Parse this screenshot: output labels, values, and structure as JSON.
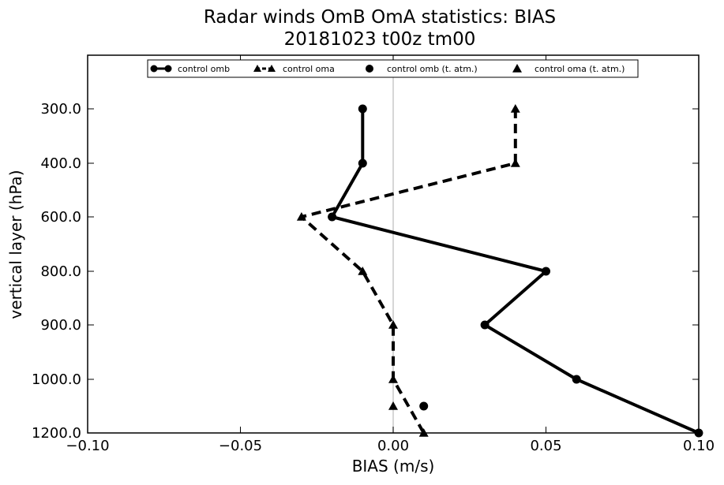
{
  "chart_data": {
    "type": "line",
    "title": "Radar winds OmB OmA statistics: BIAS",
    "subtitle": "20181023 t00z tm00",
    "xlabel": "BIAS (m/s)",
    "ylabel": "vertical layer (hPa)",
    "xlim": [
      -0.1,
      0.1
    ],
    "xticks": [
      "−0.10",
      "−0.05",
      "0.00",
      "0.05",
      "0.10"
    ],
    "xtick_values": [
      -0.1,
      -0.05,
      0.0,
      0.05,
      0.1
    ],
    "y_categories": [
      "300.0",
      "400.0",
      "600.0",
      "800.0",
      "900.0",
      "1000.0",
      "1200.0"
    ],
    "y_extra_position": "1100.0",
    "grid": false,
    "zero_line": true,
    "legend_position": "top-center",
    "series": [
      {
        "name": "control omb",
        "style": "solid",
        "marker": "circle",
        "color": "#000000",
        "points": [
          {
            "x": -0.01,
            "y": "300.0"
          },
          {
            "x": -0.01,
            "y": "400.0"
          },
          {
            "x": -0.02,
            "y": "600.0"
          },
          {
            "x": 0.05,
            "y": "800.0"
          },
          {
            "x": 0.03,
            "y": "900.0"
          },
          {
            "x": 0.06,
            "y": "1000.0"
          },
          {
            "x": 0.1,
            "y": "1200.0"
          }
        ]
      },
      {
        "name": "control oma",
        "style": "dashed",
        "marker": "triangle",
        "color": "#000000",
        "points": [
          {
            "x": 0.04,
            "y": "300.0"
          },
          {
            "x": 0.04,
            "y": "400.0"
          },
          {
            "x": -0.03,
            "y": "600.0"
          },
          {
            "x": -0.01,
            "y": "800.0"
          },
          {
            "x": 0.0,
            "y": "900.0"
          },
          {
            "x": 0.0,
            "y": "1000.0"
          },
          {
            "x": 0.01,
            "y": "1200.0"
          }
        ]
      },
      {
        "name": "control omb (t. atm.)",
        "style": "none",
        "marker": "circle",
        "color": "#000000",
        "points": [
          {
            "x": 0.01,
            "y": "1100.0"
          }
        ]
      },
      {
        "name": "control oma (t. atm.)",
        "style": "none",
        "marker": "triangle",
        "color": "#000000",
        "points": [
          {
            "x": 0.0,
            "y": "1100.0"
          }
        ]
      }
    ]
  }
}
